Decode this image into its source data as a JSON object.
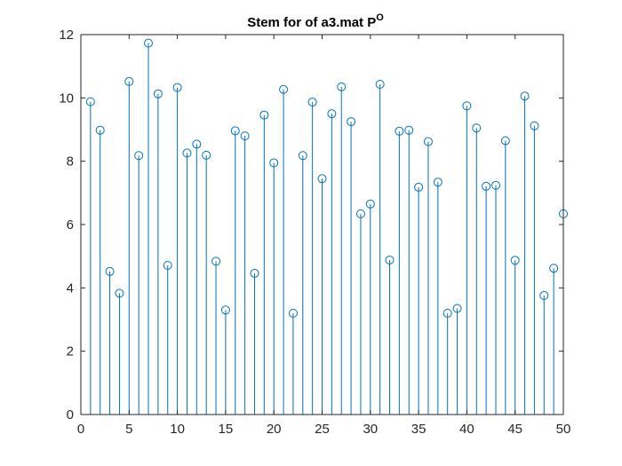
{
  "chart_data": {
    "type": "stem",
    "title": "Stem for of a3.mat P",
    "title_superscript": "O",
    "xlabel": "",
    "ylabel": "",
    "xlim": [
      0,
      50
    ],
    "ylim": [
      0,
      12
    ],
    "xticks": [
      0,
      5,
      10,
      15,
      20,
      25,
      30,
      35,
      40,
      45,
      50
    ],
    "yticks": [
      0,
      2,
      4,
      6,
      8,
      10,
      12
    ],
    "grid": false,
    "color": "#0072BD",
    "marker": "circle-open",
    "series": [
      {
        "x": [
          1,
          2,
          3,
          4,
          5,
          6,
          7,
          8,
          9,
          10,
          11,
          12,
          13,
          14,
          15,
          16,
          17,
          18,
          19,
          20,
          21,
          22,
          23,
          24,
          25,
          26,
          27,
          28,
          29,
          30,
          31,
          32,
          33,
          34,
          35,
          36,
          37,
          38,
          39,
          40,
          41,
          42,
          43,
          44,
          45,
          46,
          47,
          48,
          49,
          50
        ],
        "values": [
          9.88,
          8.98,
          4.52,
          3.83,
          10.52,
          8.18,
          11.73,
          10.13,
          4.71,
          10.33,
          8.26,
          8.54,
          8.19,
          4.84,
          3.3,
          8.96,
          8.8,
          4.46,
          9.46,
          7.95,
          10.27,
          3.2,
          8.18,
          9.87,
          7.45,
          9.5,
          10.35,
          9.25,
          6.34,
          6.65,
          10.43,
          4.88,
          8.95,
          8.98,
          7.18,
          8.62,
          7.34,
          3.2,
          3.35,
          9.75,
          9.05,
          7.21,
          7.24,
          8.65,
          4.87,
          10.06,
          9.12,
          3.76,
          4.62,
          6.34
        ]
      }
    ]
  }
}
